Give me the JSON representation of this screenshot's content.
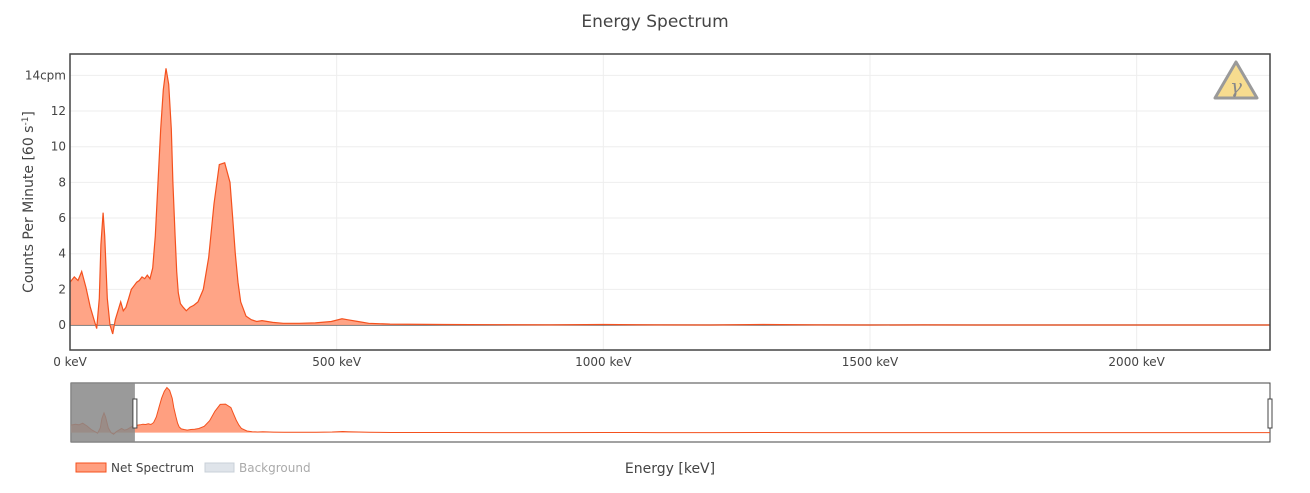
{
  "chart_data": {
    "type": "area",
    "title": "Energy Spectrum",
    "xlabel": "Energy [keV]",
    "ylabel_main": "Counts Per Minute [60 s",
    "ylabel_sup": "-1",
    "ylabel_end": "]",
    "xlim": [
      0,
      2250
    ],
    "ylim": [
      -1.4,
      15.2
    ],
    "x_ticks": [
      0,
      500,
      1000,
      1500,
      2000
    ],
    "x_tick_labels": [
      "0 keV",
      "500 keV",
      "1000 keV",
      "1500 keV",
      "2000 keV"
    ],
    "y_ticks": [
      0,
      2,
      4,
      6,
      8,
      10,
      12,
      14
    ],
    "y_tick_labels": [
      "0",
      "2",
      "4",
      "6",
      "8",
      "10",
      "12",
      "14cpm"
    ],
    "grid": true,
    "legend_position": "bottom-left",
    "series": [
      {
        "name": "Net Spectrum",
        "color": "#f4511e",
        "fill": "#ff9f80",
        "x": [
          0,
          8,
          15,
          22,
          30,
          38,
          45,
          50,
          55,
          58,
          62,
          65,
          70,
          75,
          80,
          85,
          90,
          95,
          100,
          105,
          110,
          115,
          120,
          125,
          130,
          135,
          140,
          145,
          150,
          155,
          160,
          165,
          170,
          175,
          180,
          185,
          190,
          193,
          197,
          200,
          203,
          207,
          212,
          218,
          225,
          232,
          240,
          250,
          260,
          270,
          280,
          290,
          300,
          305,
          310,
          315,
          320,
          330,
          340,
          350,
          360,
          380,
          400,
          430,
          460,
          490,
          510,
          520,
          540,
          560,
          600,
          700,
          800,
          900,
          1000,
          1100,
          1200,
          1300,
          1400,
          1500,
          1600,
          1700,
          1800,
          1900,
          2000,
          2100,
          2250
        ],
        "y": [
          2.4,
          2.7,
          2.5,
          3.0,
          2.1,
          1.0,
          0.3,
          -0.2,
          1.5,
          4.5,
          6.3,
          5.0,
          1.5,
          0.0,
          -0.5,
          0.3,
          0.8,
          1.3,
          0.8,
          1.0,
          1.5,
          2.0,
          2.2,
          2.4,
          2.5,
          2.7,
          2.6,
          2.8,
          2.6,
          3.2,
          5.0,
          8.0,
          11.0,
          13.2,
          14.4,
          13.5,
          11.0,
          8.0,
          5.0,
          3.0,
          1.8,
          1.2,
          1.0,
          0.8,
          1.0,
          1.1,
          1.3,
          2.0,
          3.8,
          6.8,
          9.0,
          9.1,
          8.0,
          6.0,
          4.0,
          2.4,
          1.3,
          0.5,
          0.3,
          0.2,
          0.25,
          0.15,
          0.1,
          0.1,
          0.12,
          0.2,
          0.35,
          0.3,
          0.2,
          0.1,
          0.05,
          0.03,
          0.02,
          0.01,
          0.03,
          0.01,
          0.0,
          0.03,
          0.01,
          0.0,
          0.01,
          0.0,
          0.0,
          0.0,
          0.0,
          0.0,
          0.0
        ]
      },
      {
        "name": "Background",
        "color": "#b8c4cf",
        "visible": false
      }
    ],
    "legend": [
      {
        "label": "Net Spectrum",
        "active": true
      },
      {
        "label": "Background",
        "active": false
      }
    ]
  },
  "badge": {
    "symbol": "γ",
    "icon": "gamma-radiation-warning-icon"
  },
  "range_slider": {
    "range": [
      0,
      120
    ],
    "xlim": [
      0,
      2250
    ]
  }
}
